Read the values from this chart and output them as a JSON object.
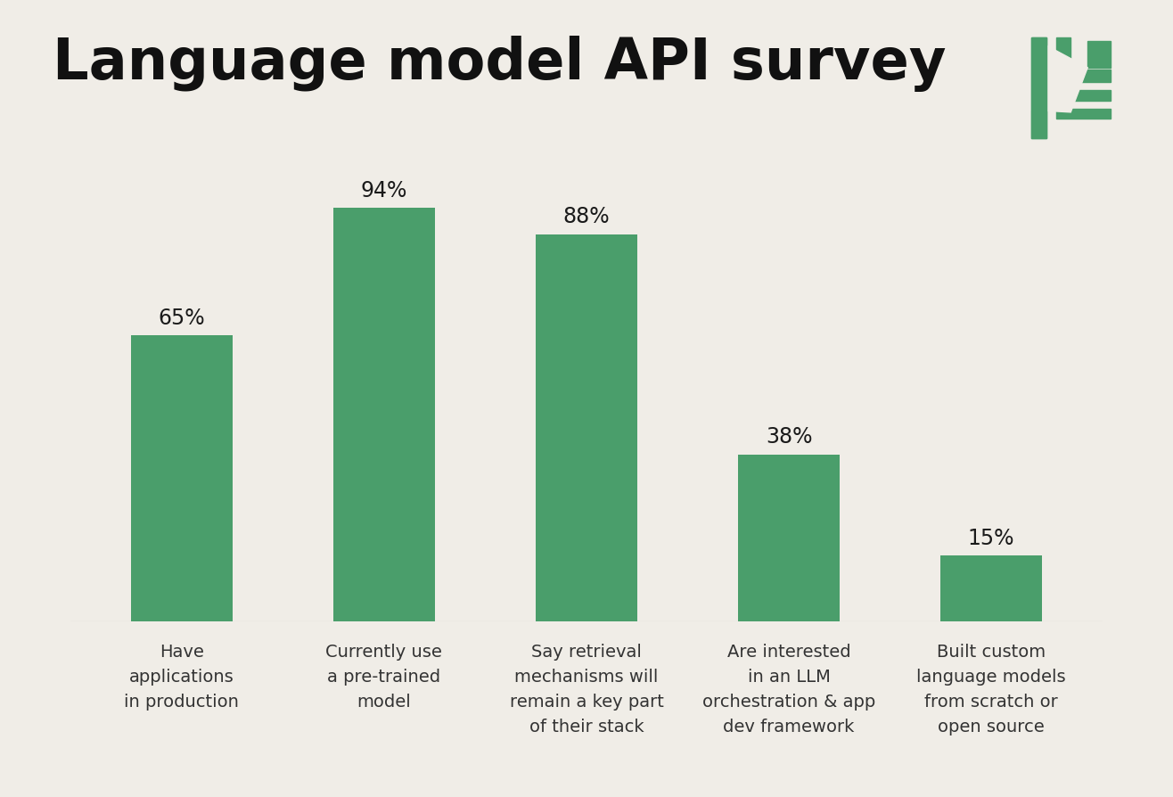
{
  "title": "Language model API survey",
  "background_color": "#F0EDE7",
  "bar_color": "#4A9E6B",
  "categories": [
    "Have\napplications\nin production",
    "Currently use\na pre-trained\nmodel",
    "Say retrieval\nmechanisms will\nremain a key part\nof their stack",
    "Are interested\nin an LLM\norchestration & app\ndev framework",
    "Built custom\nlanguage models\nfrom scratch or\nopen source"
  ],
  "values": [
    65,
    94,
    88,
    38,
    15
  ],
  "labels": [
    "65%",
    "94%",
    "88%",
    "38%",
    "15%"
  ],
  "title_fontsize": 46,
  "label_fontsize": 17,
  "category_fontsize": 14,
  "logo_color": "#4A9E6B",
  "ylim": [
    0,
    105
  ]
}
